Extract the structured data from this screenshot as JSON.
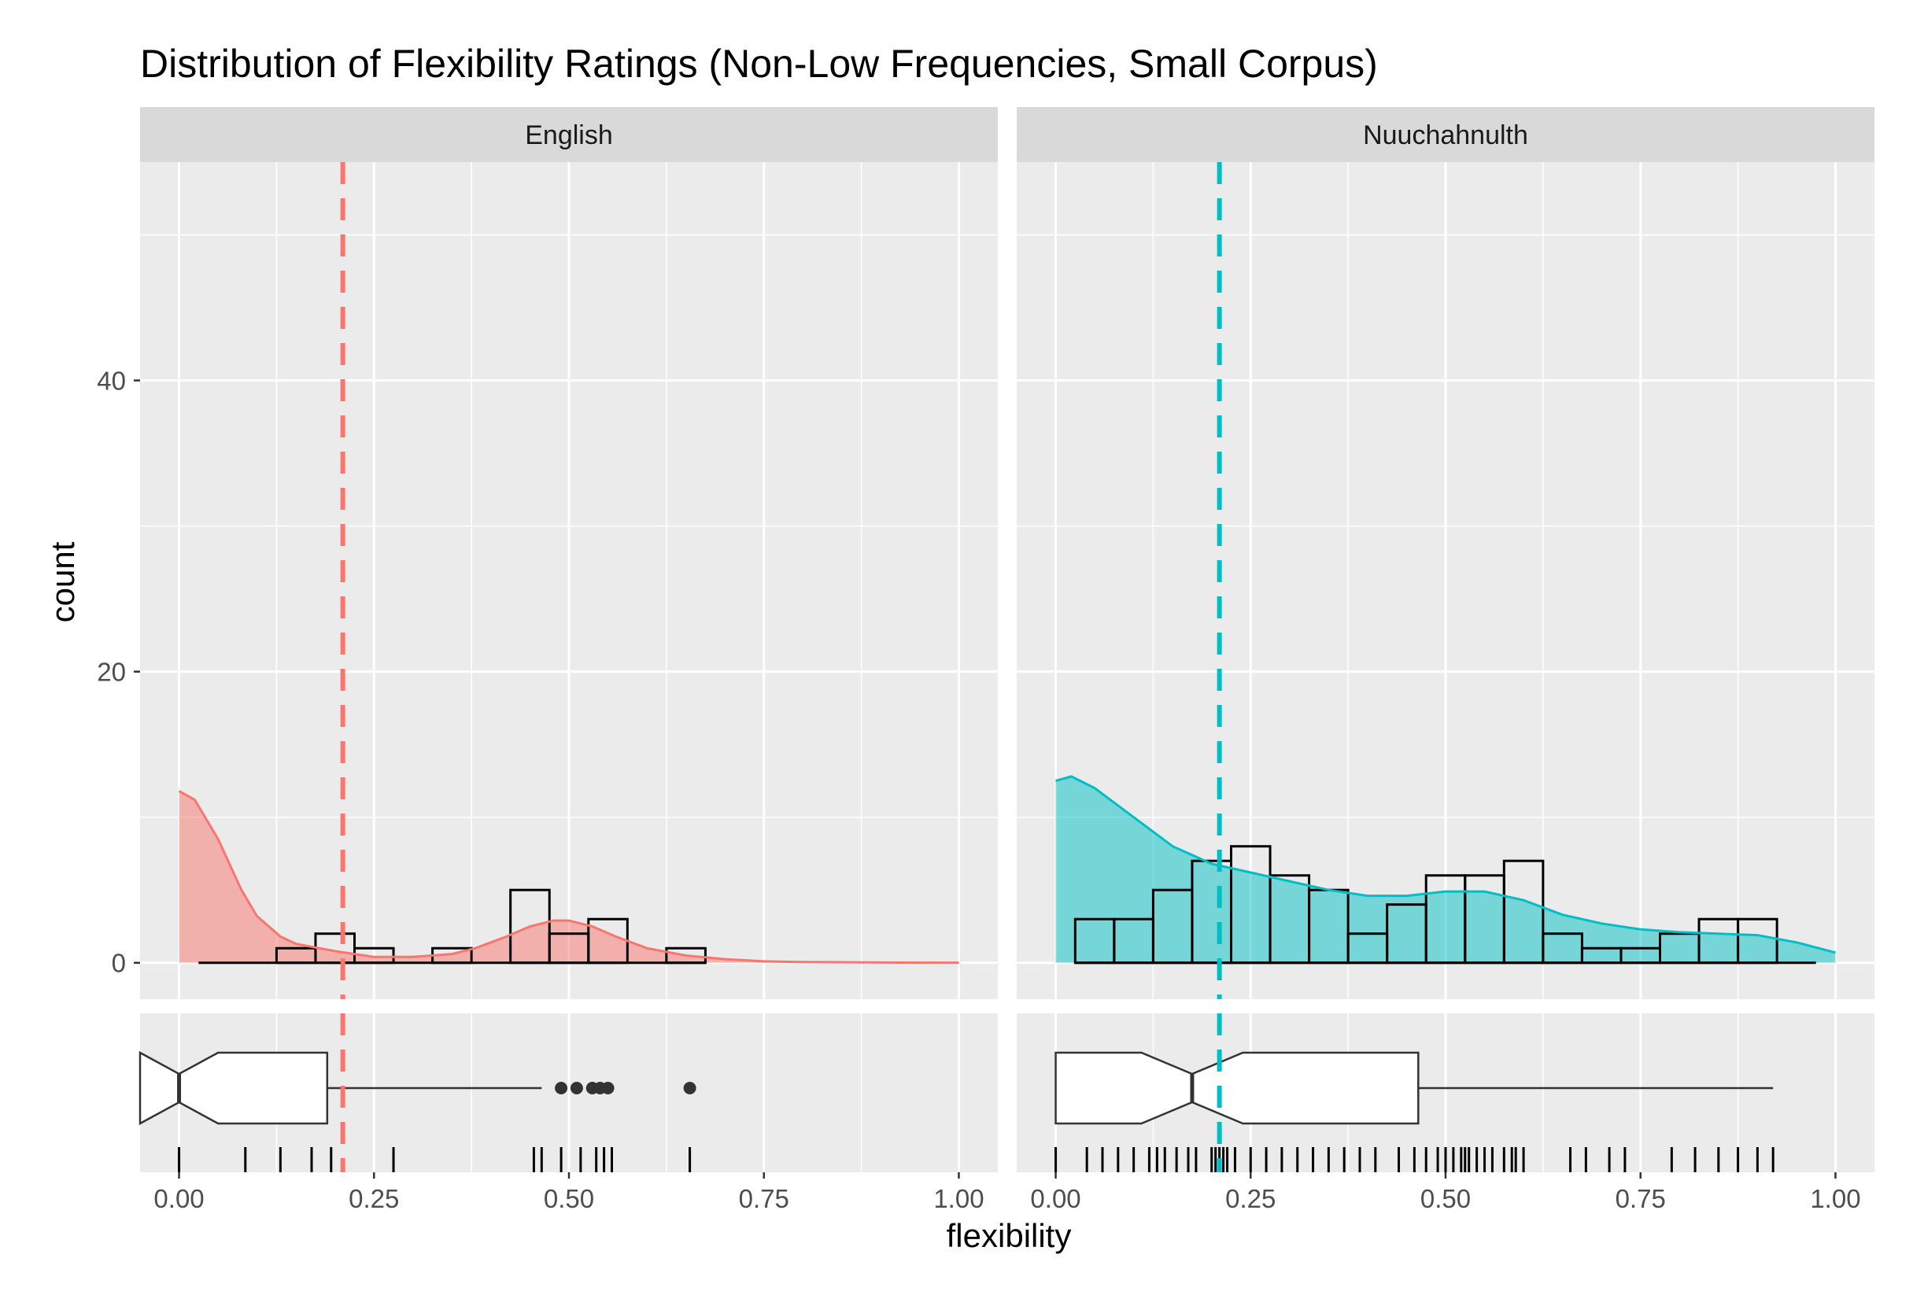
{
  "chart_data": {
    "type": "histogram",
    "title": "Distribution of Flexibility Ratings (Non-Low Frequencies, Small Corpus)",
    "xlabel": "flexibility",
    "ylabel": "count",
    "xlim": [
      -0.05,
      1.05
    ],
    "ylim": [
      -2.5,
      55
    ],
    "x_ticks": [
      0,
      0.25,
      0.5,
      0.75,
      1
    ],
    "x_tick_labels": [
      "0.00",
      "0.25",
      "0.50",
      "0.75",
      "1.00"
    ],
    "y_ticks": [
      0,
      20,
      40
    ],
    "y_tick_labels": [
      "0",
      "20",
      "40"
    ],
    "bin_width": 0.05,
    "panels": [
      {
        "name": "English",
        "color": "#F8766D",
        "mean_line": 0.21,
        "hist_x_range": [
          0.025,
          0.675
        ],
        "hist_counts": [
          0,
          0,
          1,
          2,
          1,
          0,
          1,
          0,
          5,
          2,
          3,
          0,
          1
        ],
        "density_x": [
          0,
          0.02,
          0.05,
          0.08,
          0.1,
          0.13,
          0.15,
          0.18,
          0.2,
          0.25,
          0.3,
          0.35,
          0.38,
          0.42,
          0.45,
          0.48,
          0.5,
          0.53,
          0.56,
          0.6,
          0.65,
          0.7,
          0.75,
          0.8,
          0.9,
          1.0
        ],
        "density_y": [
          11.8,
          11.2,
          8.5,
          5.0,
          3.2,
          1.8,
          1.3,
          1.0,
          0.8,
          0.4,
          0.4,
          0.6,
          1.0,
          1.8,
          2.5,
          2.9,
          2.9,
          2.5,
          1.8,
          1.0,
          0.5,
          0.25,
          0.1,
          0.05,
          0.02,
          0.01
        ],
        "boxplot": {
          "min": 0,
          "q1": 0,
          "median": 0,
          "q3": 0.19,
          "whisker_high": 0.465,
          "outliers": [
            0.49,
            0.51,
            0.53,
            0.54,
            0.55,
            0.655
          ],
          "notch_low": -0.05,
          "notch_high": 0.05
        },
        "rug": [
          0,
          0.085,
          0.13,
          0.17,
          0.195,
          0.275,
          0.455,
          0.465,
          0.49,
          0.515,
          0.535,
          0.545,
          0.555,
          0.655
        ]
      },
      {
        "name": "Nuuchahnulth",
        "color": "#00BFC4",
        "mean_line": 0.21,
        "hist_x_range": [
          0.025,
          0.975
        ],
        "hist_counts": [
          3,
          3,
          5,
          7,
          8,
          6,
          5,
          2,
          4,
          6,
          6,
          7,
          2,
          1,
          1,
          2,
          3,
          3,
          0
        ],
        "density_x": [
          0,
          0.02,
          0.05,
          0.1,
          0.15,
          0.2,
          0.25,
          0.3,
          0.35,
          0.4,
          0.45,
          0.5,
          0.55,
          0.6,
          0.65,
          0.7,
          0.75,
          0.8,
          0.85,
          0.9,
          0.95,
          1.0
        ],
        "density_y": [
          12.5,
          12.8,
          12.0,
          10.0,
          8.0,
          6.8,
          6.2,
          5.6,
          5.0,
          4.6,
          4.6,
          4.9,
          4.9,
          4.3,
          3.3,
          2.7,
          2.3,
          2.1,
          2.0,
          1.9,
          1.4,
          0.7
        ],
        "boxplot": {
          "min": 0,
          "q1": 0,
          "median": 0.175,
          "q3": 0.465,
          "whisker_high": 0.92,
          "outliers": [],
          "notch_low": 0.11,
          "notch_high": 0.24
        },
        "rug": [
          0,
          0.04,
          0.06,
          0.08,
          0.1,
          0.12,
          0.13,
          0.14,
          0.155,
          0.17,
          0.18,
          0.2,
          0.205,
          0.21,
          0.215,
          0.22,
          0.23,
          0.25,
          0.27,
          0.29,
          0.31,
          0.33,
          0.35,
          0.37,
          0.39,
          0.41,
          0.44,
          0.46,
          0.475,
          0.49,
          0.5,
          0.51,
          0.52,
          0.525,
          0.53,
          0.54,
          0.55,
          0.56,
          0.575,
          0.585,
          0.59,
          0.6,
          0.66,
          0.68,
          0.71,
          0.73,
          0.79,
          0.82,
          0.85,
          0.875,
          0.9,
          0.92
        ]
      }
    ]
  }
}
